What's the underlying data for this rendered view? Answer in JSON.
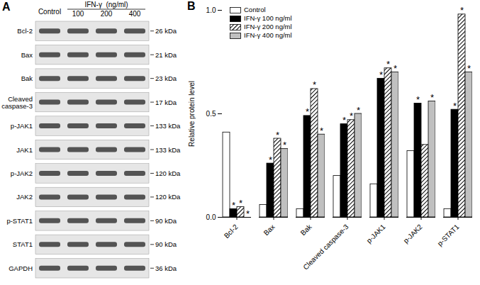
{
  "chart_data": {
    "type": "bar",
    "title": "B",
    "categories": [
      "Bcl-2",
      "Bax",
      "Bak",
      "Cleaved caspase-3",
      "p-JAK1",
      "p-JAK2",
      "p-STAT1"
    ],
    "series": [
      {
        "name": "Control",
        "color": "#ffffff",
        "values": [
          0.41,
          0.06,
          0.04,
          0.2,
          0.16,
          0.32,
          0.04
        ]
      },
      {
        "name": "IFN-γ 100 ng/ml",
        "color": "#000000",
        "values": [
          0.04,
          0.26,
          0.49,
          0.45,
          0.67,
          0.55,
          0.52
        ]
      },
      {
        "name": "IFN-γ 200 ng/ml",
        "color": "hatched",
        "values": [
          0.05,
          0.38,
          0.62,
          0.47,
          0.72,
          0.35,
          0.98
        ]
      },
      {
        "name": "IFN-γ 400 ng/ml",
        "color": "#c0c0c0",
        "values": [
          0,
          0.33,
          0.4,
          0.5,
          0.7,
          0.56,
          0.7
        ]
      }
    ],
    "y_label": "Relative protein level",
    "ylim": [
      0,
      1.0
    ],
    "yticks": [
      {
        "value": 0,
        "label": "0.0"
      },
      {
        "value": 0.5,
        "label": "0.5"
      },
      {
        "value": 1.0,
        "label": "1.0"
      }
    ],
    "grid": false,
    "legend": "upper left",
    "annotations": [
      {
        "text": "*",
        "category": "Bcl-2",
        "series": "IFN-γ 100 ng/ml"
      },
      {
        "text": "*",
        "category": "Bcl-2",
        "series": "IFN-γ 200 ng/ml"
      },
      {
        "text": "*",
        "category": "Bcl-2",
        "series": "IFN-γ 400 ng/ml"
      },
      {
        "text": "*",
        "category": "Bax",
        "series": "IFN-γ 100 ng/ml"
      },
      {
        "text": "*",
        "category": "Bax",
        "series": "IFN-γ 200 ng/ml"
      },
      {
        "text": "*",
        "category": "Bax",
        "series": "IFN-γ 400 ng/ml"
      },
      {
        "text": "*",
        "category": "Bak",
        "series": "IFN-γ 100 ng/ml"
      },
      {
        "text": "*",
        "category": "Bak",
        "series": "IFN-γ 200 ng/ml"
      },
      {
        "text": "*",
        "category": "Bak",
        "series": "IFN-γ 400 ng/ml"
      },
      {
        "text": "*",
        "category": "Cleaved caspase-3",
        "series": "IFN-γ 100 ng/ml"
      },
      {
        "text": "*",
        "category": "Cleaved caspase-3",
        "series": "IFN-γ 200 ng/ml"
      },
      {
        "text": "*",
        "category": "Cleaved caspase-3",
        "series": "IFN-γ 400 ng/ml"
      },
      {
        "text": "*",
        "category": "p-JAK1",
        "series": "IFN-γ 100 ng/ml"
      },
      {
        "text": "*",
        "category": "p-JAK1",
        "series": "IFN-γ 200 ng/ml"
      },
      {
        "text": "*",
        "category": "p-JAK1",
        "series": "IFN-γ 400 ng/ml"
      },
      {
        "text": "*",
        "category": "p-JAK2",
        "series": "IFN-γ 100 ng/ml"
      },
      {
        "text": "*",
        "category": "p-JAK2",
        "series": "IFN-γ 400 ng/ml"
      },
      {
        "text": "*",
        "category": "p-STAT1",
        "series": "IFN-γ 100 ng/ml"
      },
      {
        "text": "*",
        "category": "p-STAT1",
        "series": "IFN-γ 200 ng/ml"
      },
      {
        "text": "*",
        "category": "p-STAT1",
        "series": "IFN-γ 400 ng/ml"
      }
    ]
  },
  "blot": {
    "title": "A",
    "lane_header": "IFN-γ  (ng/ml)",
    "lanes": [
      "Control",
      "100",
      "200",
      "400"
    ],
    "rows": [
      {
        "protein": "Bcl-2",
        "size": "26 kDa"
      },
      {
        "protein": "Bax",
        "size": "21 kDa"
      },
      {
        "protein": "Bak",
        "size": "23 kDa"
      },
      {
        "protein": "Cleaved caspase-3",
        "size": "17 kDa"
      },
      {
        "protein": "p-JAK1",
        "size": "133 kDa"
      },
      {
        "protein": "JAK1",
        "size": "133 kDa"
      },
      {
        "protein": "p-JAK2",
        "size": "120 kDa"
      },
      {
        "protein": "JAK2",
        "size": "120 kDa"
      },
      {
        "protein": "p-STAT1",
        "size": "90 kDa"
      },
      {
        "protein": "STAT1",
        "size": "90 kDa"
      },
      {
        "protein": "GAPDH",
        "size": "36 kDa"
      }
    ]
  }
}
